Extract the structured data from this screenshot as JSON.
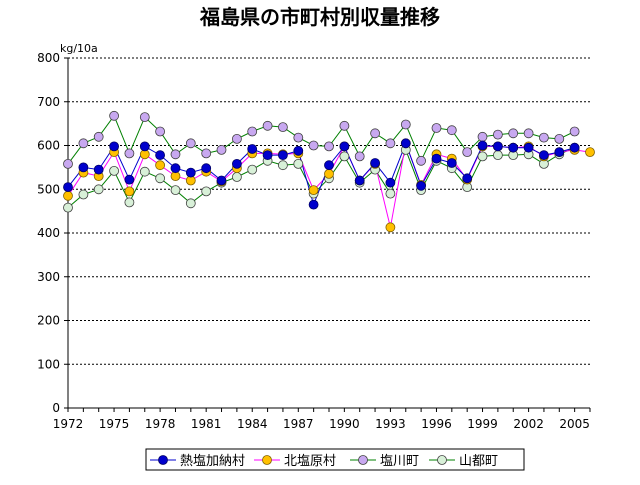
{
  "chart_data": {
    "type": "line",
    "title": "福島県の市町村別収量推移",
    "unit": "kg/10a",
    "xlabel": "",
    "ylabel": "kg/10a",
    "ylim": [
      0,
      800
    ],
    "yticks": [
      0,
      100,
      200,
      300,
      400,
      500,
      600,
      700,
      800
    ],
    "xticks": [
      1972,
      1975,
      1978,
      1981,
      1984,
      1987,
      1990,
      1993,
      1996,
      1999,
      2002,
      2005
    ],
    "xlim": [
      1972,
      2006
    ],
    "grid": true,
    "legend_position": "bottom",
    "series": [
      {
        "name": "熱塩加納村",
        "line_color": "#0000cc",
        "marker_fill": "#0000cc",
        "marker_stroke": "#000066",
        "x": [
          1972,
          1973,
          1974,
          1975,
          1976,
          1977,
          1978,
          1979,
          1980,
          1981,
          1982,
          1983,
          1984,
          1985,
          1986,
          1987,
          1988,
          1989,
          1990,
          1991,
          1992,
          1993,
          1994,
          1995,
          1996,
          1997,
          1998,
          1999,
          2000,
          2001,
          2002,
          2003,
          2004,
          2005
        ],
        "values": [
          505,
          550,
          545,
          598,
          522,
          598,
          578,
          548,
          538,
          548,
          520,
          558,
          592,
          578,
          578,
          588,
          465,
          555,
          598,
          520,
          560,
          515,
          605,
          508,
          570,
          560,
          525,
          600,
          598,
          595,
          595,
          578,
          585,
          595
        ]
      },
      {
        "name": "北塩原村",
        "line_color": "#ff00ff",
        "marker_fill": "#ffc000",
        "marker_stroke": "#806000",
        "x": [
          1972,
          1973,
          1974,
          1975,
          1976,
          1977,
          1978,
          1979,
          1980,
          1981,
          1982,
          1983,
          1984,
          1985,
          1986,
          1987,
          1988,
          1989,
          1990,
          1991,
          1992,
          1993,
          1994,
          1995,
          1996,
          1997,
          1998,
          1999,
          2000,
          2001,
          2002,
          2003,
          2004,
          2005,
          2006
        ],
        "values": [
          485,
          538,
          530,
          585,
          495,
          580,
          555,
          530,
          520,
          540,
          518,
          548,
          582,
          582,
          580,
          582,
          498,
          535,
          598,
          520,
          558,
          413,
          605,
          510,
          580,
          570,
          522,
          598,
          598,
          595,
          598,
          575,
          585,
          590,
          585
        ]
      },
      {
        "name": "塩川町",
        "line_color": "#008000",
        "marker_fill": "#c8a8f0",
        "marker_stroke": "#404040",
        "x": [
          1972,
          1973,
          1974,
          1975,
          1976,
          1977,
          1978,
          1979,
          1980,
          1981,
          1982,
          1983,
          1984,
          1985,
          1986,
          1987,
          1988,
          1989,
          1990,
          1991,
          1992,
          1993,
          1994,
          1995,
          1996,
          1997,
          1998,
          1999,
          2000,
          2001,
          2002,
          2003,
          2004,
          2005
        ],
        "values": [
          558,
          605,
          620,
          668,
          582,
          665,
          632,
          580,
          605,
          582,
          590,
          615,
          632,
          645,
          642,
          618,
          600,
          598,
          645,
          575,
          628,
          605,
          648,
          565,
          640,
          635,
          585,
          620,
          625,
          628,
          628,
          618,
          615,
          632
        ]
      },
      {
        "name": "山都町",
        "line_color": "#008000",
        "marker_fill": "#d8f0d8",
        "marker_stroke": "#404040",
        "x": [
          1972,
          1973,
          1974,
          1975,
          1976,
          1977,
          1978,
          1979,
          1980,
          1981,
          1982,
          1983,
          1984,
          1985,
          1986,
          1987,
          1988,
          1989,
          1990,
          1991,
          1992,
          1993,
          1994,
          1995,
          1996,
          1997,
          1998,
          1999,
          2000,
          2001,
          2002,
          2003,
          2004,
          2005
        ],
        "values": [
          458,
          488,
          500,
          542,
          470,
          540,
          525,
          498,
          468,
          495,
          515,
          528,
          545,
          565,
          555,
          558,
          490,
          525,
          575,
          515,
          545,
          490,
          590,
          498,
          565,
          548,
          505,
          575,
          578,
          578,
          580,
          558,
          580,
          595
        ]
      }
    ]
  }
}
